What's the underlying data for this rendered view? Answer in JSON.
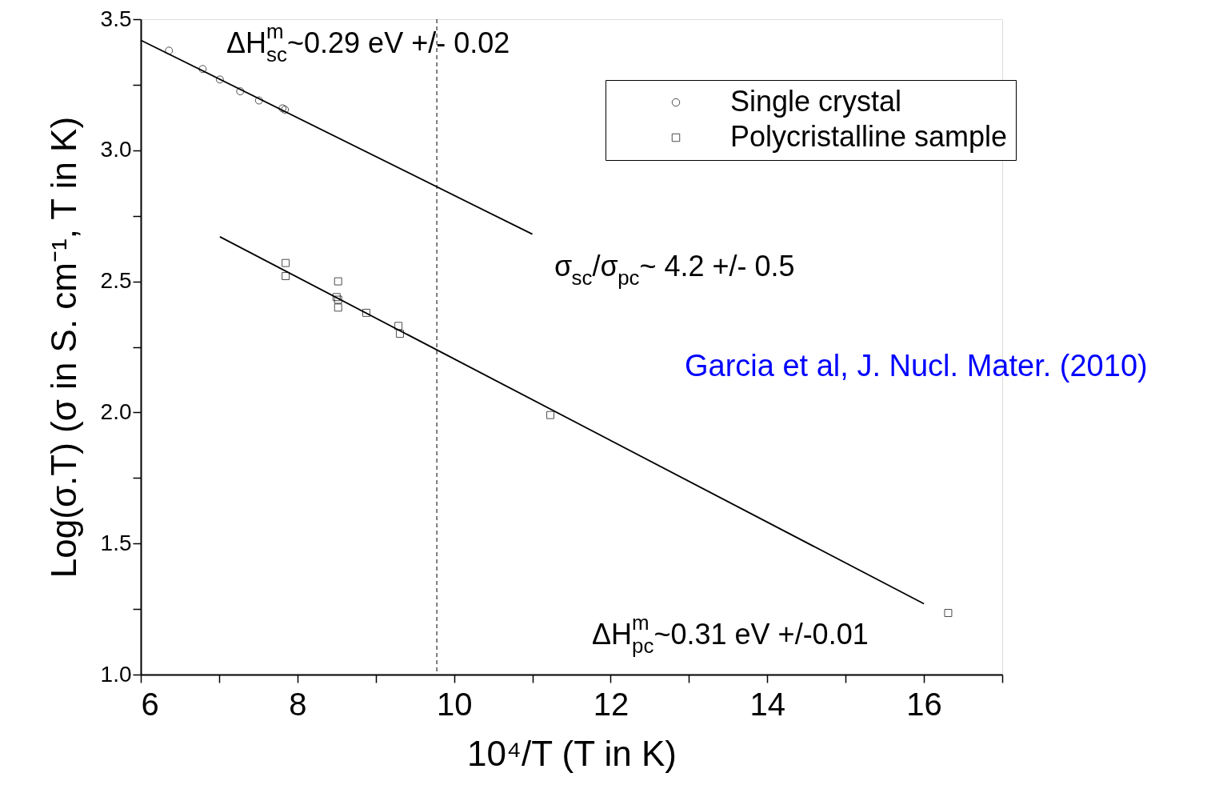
{
  "chart_data": {
    "type": "scatter",
    "xlabel": "10⁴/T (T in K)",
    "ylabel": "Log(σ.T) (σ in S. cm⁻¹, T in K)",
    "xlim": [
      6,
      17
    ],
    "ylim": [
      1.0,
      3.5
    ],
    "xticks": [
      6,
      {
        "value": 7,
        "label": null
      },
      8,
      {
        "value": 9,
        "label": null
      },
      10,
      {
        "value": 11,
        "label": null
      },
      12,
      {
        "value": 13,
        "label": null
      },
      14,
      {
        "value": 15,
        "label": null
      },
      16,
      {
        "value": 17,
        "label": null
      }
    ],
    "yticks": [
      {
        "value": 1.0,
        "label": "1.0"
      },
      {
        "value": 1.25,
        "label": null
      },
      {
        "value": 1.5,
        "label": "1.5"
      },
      {
        "value": 1.75,
        "label": null
      },
      {
        "value": 2.0,
        "label": "2.0"
      },
      {
        "value": 2.25,
        "label": null
      },
      {
        "value": 2.5,
        "label": "2.5"
      },
      {
        "value": 2.75,
        "label": null
      },
      {
        "value": 3.0,
        "label": "3.0"
      },
      {
        "value": 3.25,
        "label": null
      },
      {
        "value": 3.5,
        "label": "3.5"
      }
    ],
    "grid": false,
    "legend": "top right",
    "series": [
      {
        "name": "Single crystal",
        "color": "#000000",
        "marker": "circle",
        "x": [
          6.36,
          6.79,
          7.01,
          7.27,
          7.51,
          7.81,
          7.84
        ],
        "values": [
          3.38,
          3.31,
          3.27,
          3.225,
          3.19,
          3.16,
          3.155
        ]
      },
      {
        "name": "Polycristalline sample",
        "color": "#000000",
        "marker": "square",
        "x": [
          7.85,
          7.85,
          8.52,
          8.5,
          8.52,
          8.52,
          8.88,
          9.29,
          9.31,
          11.23,
          16.31
        ],
        "values": [
          2.57,
          2.52,
          2.5,
          2.44,
          2.43,
          2.4,
          2.38,
          2.33,
          2.3,
          1.99,
          1.235
        ]
      },
      {
        "type": "line",
        "color": "#000000",
        "x": [
          6.0,
          11.0
        ],
        "values": [
          3.42,
          2.68
        ]
      },
      {
        "type": "line",
        "color": "#000000",
        "x": [
          7.01,
          16.0
        ],
        "values": [
          2.67,
          1.27
        ]
      }
    ],
    "ref_lines": [
      {
        "axis": "x",
        "value": 9.78,
        "color": "#000000",
        "line_style": "dashed"
      }
    ],
    "annotations": [
      "ΔH$^{m}$$_{sc}$~0.29 eV  +/- 0.02",
      "σ$_{sc}$/σ$_{pc}$~ 4.2 +/- 0.5",
      "Garcia et al, J. Nucl. Mater. (2010)",
      "ΔH$^{m}$$_{pc}$~0.31 eV +/-0.01"
    ]
  }
}
